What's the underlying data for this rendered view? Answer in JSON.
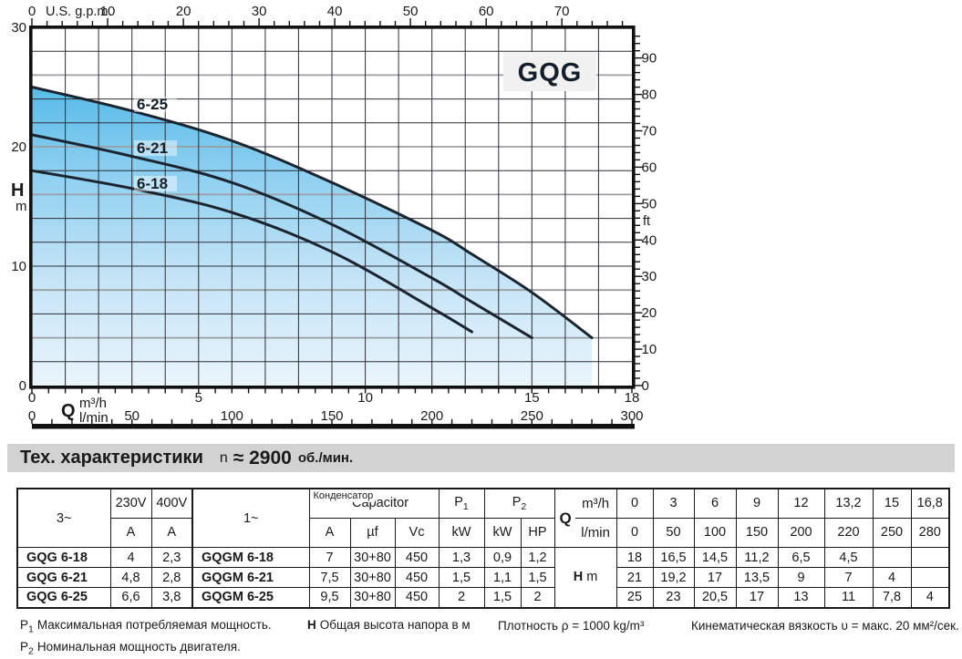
{
  "chart_data": {
    "type": "line",
    "title": "GQG",
    "xlabel": "Q",
    "x_units": [
      "m³/h",
      "l/min",
      "U.S. g.p.m."
    ],
    "ylabel": "H",
    "y_units": [
      "m",
      "ft"
    ],
    "xlim_m3h": [
      0,
      18
    ],
    "ylim_m": [
      0,
      30
    ],
    "grid": true,
    "x_m3h": [
      0,
      3,
      6,
      9,
      12,
      13.2,
      15,
      16.8
    ],
    "series": [
      {
        "name": "6-25",
        "values": [
          25,
          23,
          20.5,
          17,
          13,
          11,
          7.8,
          4
        ]
      },
      {
        "name": "6-21",
        "values": [
          21,
          19.2,
          17,
          13.5,
          9,
          7,
          4,
          null
        ]
      },
      {
        "name": "6-18",
        "values": [
          18,
          16.5,
          14.5,
          11.2,
          6.5,
          4.5,
          null,
          null
        ]
      }
    ]
  },
  "chart": {
    "box_label": "GQG",
    "curve_labels": [
      {
        "text": "6-25",
        "x": 150,
        "y": 120
      },
      {
        "text": "6-21",
        "x": 150,
        "y": 168
      },
      {
        "text": "6-18",
        "x": 150,
        "y": 207
      }
    ],
    "gray_lines_m": [
      4,
      8,
      16,
      20,
      26
    ],
    "axis_top": {
      "unit": "U.S. g.p.m.",
      "labels": [
        0,
        10,
        20,
        30,
        40,
        50,
        60,
        70
      ]
    },
    "axis_left": {
      "unit_h": "H",
      "unit_m": "m",
      "labels": [
        30,
        20,
        10,
        0
      ]
    },
    "axis_right": {
      "unit": "ft",
      "labels": [
        90,
        80,
        70,
        60,
        50,
        40,
        30,
        20,
        10,
        0
      ]
    },
    "axis_bottom_m3h": {
      "unit": "m³/h",
      "labels": [
        0,
        5,
        10,
        15,
        18
      ]
    },
    "axis_bottom_lmin": {
      "q": "Q",
      "unit": "l/min",
      "labels": [
        0,
        50,
        100,
        150,
        200,
        250,
        300
      ]
    },
    "colors": {
      "fill_gradient": [
        "#58bbe8",
        "#8fd0f1",
        "#c2e3f6",
        "#eaf5fc"
      ],
      "curve": "#1b2530",
      "grid": "#2d2d35",
      "grid_gray": "#9b9fa2",
      "axis": "#111111",
      "box_bg": "#f1f1f1"
    }
  },
  "heading": {
    "title": "Тех. характеристики",
    "n": "n",
    "value": "≈ 2900",
    "unit": "об./мин."
  },
  "table": {
    "h3": "3~",
    "h1": "1~",
    "v230": "230V",
    "v400": "400V",
    "amp": "A",
    "cap_ru": "Конденсатор",
    "cap_en": "Capacitor",
    "uf": "µf",
    "vc": "Vc",
    "p": "P",
    "p1sub": "1",
    "p2sub": "2",
    "kw": "kW",
    "hp": "HP",
    "q": "Q",
    "m3h": "m³/h",
    "lmin": "l/min",
    "h": "H",
    "m": "m",
    "q_m3h": [
      "0",
      "3",
      "6",
      "9",
      "12",
      "13,2",
      "15",
      "16,8"
    ],
    "q_lmin": [
      "0",
      "50",
      "100",
      "150",
      "200",
      "220",
      "250",
      "280"
    ],
    "rows": [
      {
        "name3": "GQG 6-18",
        "a230": "4",
        "a400": "2,3",
        "name1": "GQGM 6-18",
        "a1": "7",
        "uf": "30+80",
        "vc": "450",
        "p1": "1,3",
        "p2kw": "0,9",
        "p2hp": "1,2",
        "h": [
          "18",
          "16,5",
          "14,5",
          "11,2",
          "6,5",
          "4,5",
          "",
          ""
        ]
      },
      {
        "name3": "GQG 6-21",
        "a230": "4,8",
        "a400": "2,8",
        "name1": "GQGM 6-21",
        "a1": "7,5",
        "uf": "30+80",
        "vc": "450",
        "p1": "1,5",
        "p2kw": "1,1",
        "p2hp": "1,5",
        "h": [
          "21",
          "19,2",
          "17",
          "13,5",
          "9",
          "7",
          "4",
          ""
        ]
      },
      {
        "name3": "GQG 6-25",
        "a230": "6,6",
        "a400": "3,8",
        "name1": "GQGM 6-25",
        "a1": "9,5",
        "uf": "30+80",
        "vc": "450",
        "p1": "2",
        "p2kw": "1,5",
        "p2hp": "2",
        "h": [
          "25",
          "23",
          "20,5",
          "17",
          "13",
          "11",
          "7,8",
          "4"
        ]
      }
    ]
  },
  "footnotes": {
    "p1_sym": "P",
    "p1_sub": "1",
    "p1_text": "Максимальная потребляемая мощность.",
    "p2_sym": "P",
    "p2_sub": "2",
    "p2_text": "Номинальная мощность двигателя.",
    "h_sym": "H",
    "h_text": "Общая высота напора в м",
    "density": "Плотность ρ = 1000 kg/m³",
    "viscosity": "Кинематическая вязкость υ = макс. 20 мм²/сек."
  }
}
